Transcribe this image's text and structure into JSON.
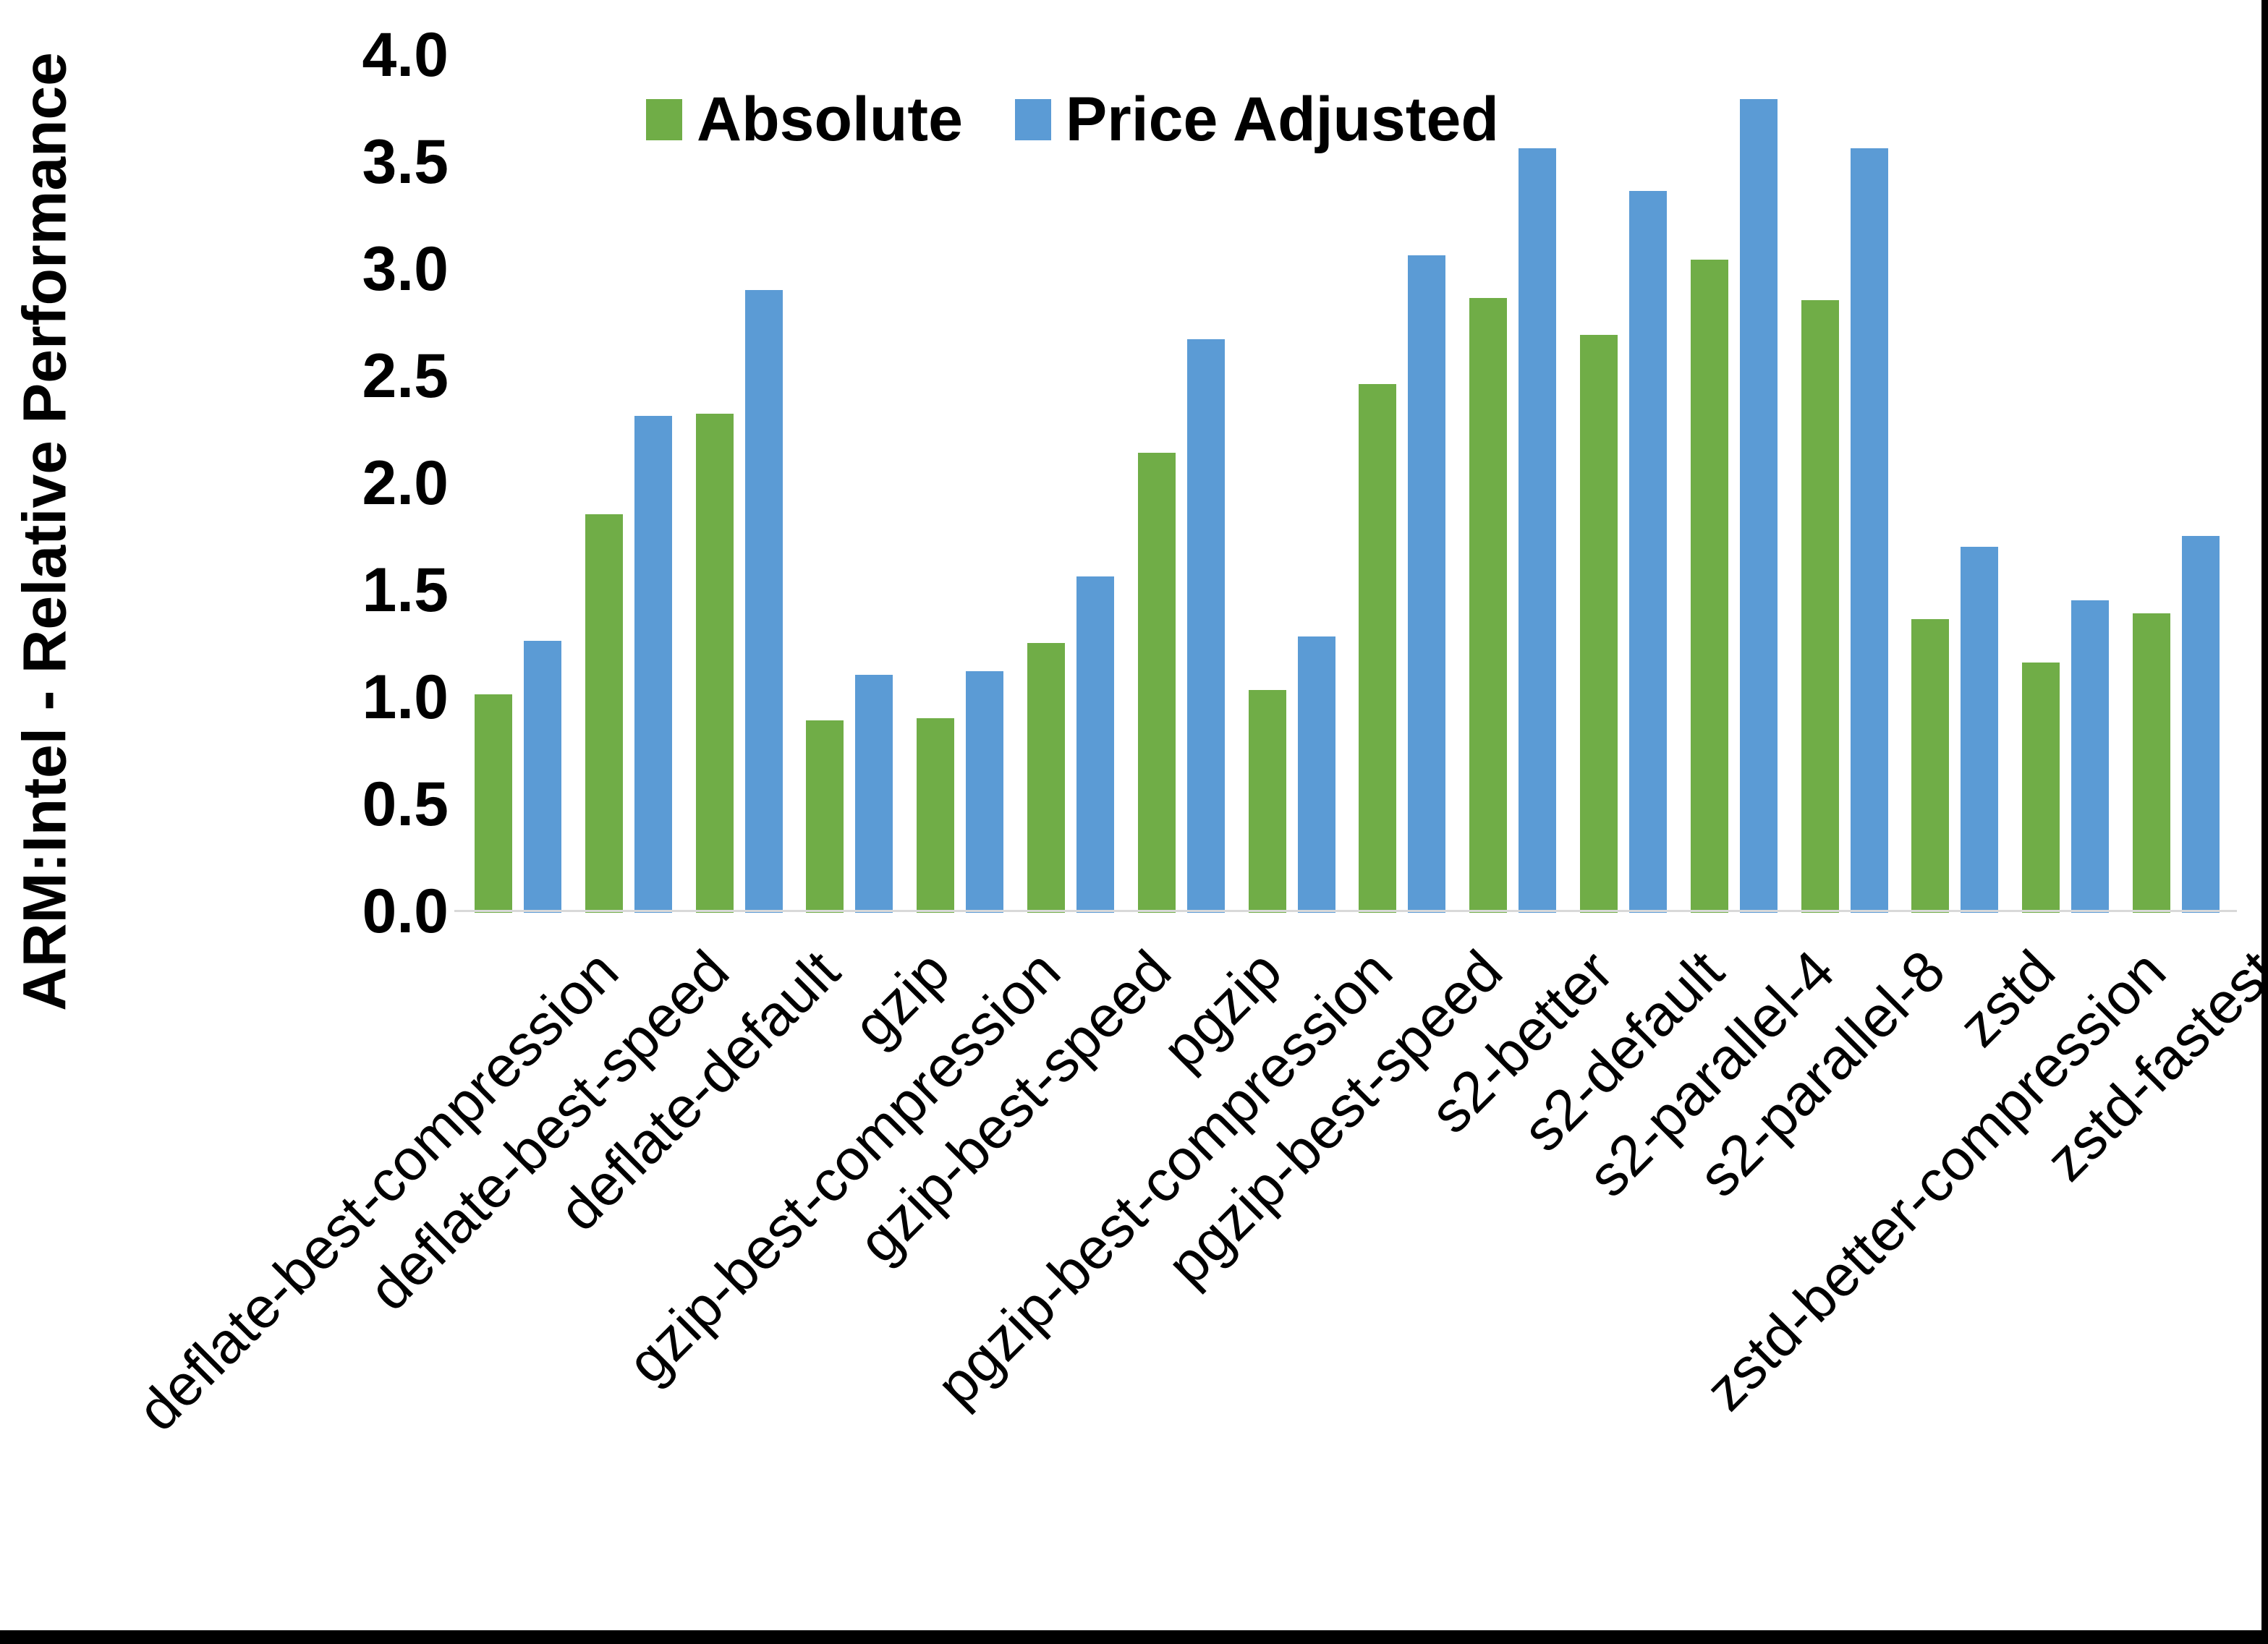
{
  "chart_data": {
    "type": "bar",
    "title": "",
    "xlabel": "",
    "ylabel": "ARM:Intel - Relative Performance",
    "ylim": [
      0.0,
      4.0
    ],
    "y_tick_step": 0.5,
    "y_ticks": [
      "0.0",
      "0.5",
      "1.0",
      "1.5",
      "2.0",
      "2.5",
      "3.0",
      "3.5",
      "4.0"
    ],
    "grid": false,
    "legend_position": "top",
    "categories": [
      "deflate-best-compression",
      "deflate-best-speed",
      "deflate-default",
      "gzip",
      "gzip-best-compression",
      "gzip-best-speed",
      "pgzip",
      "pgzip-best-compression",
      "pgzip-best-speed",
      "s2-better",
      "s2-default",
      "s2-parallel-4",
      "s2-parallel-8",
      "zstd",
      "zstd-better-compression",
      "zstd-fastest"
    ],
    "series": [
      {
        "name": "Absolute",
        "color": "#70AD47",
        "values": [
          1.02,
          1.86,
          2.33,
          0.9,
          0.91,
          1.26,
          2.15,
          1.04,
          2.47,
          2.87,
          2.7,
          3.05,
          2.86,
          1.37,
          1.17,
          1.4
        ]
      },
      {
        "name": "Price Adjusted",
        "color": "#5B9BD5",
        "values": [
          1.27,
          2.32,
          2.91,
          1.11,
          1.13,
          1.57,
          2.68,
          1.29,
          3.07,
          3.57,
          3.37,
          3.8,
          3.57,
          1.71,
          1.46,
          1.76
        ]
      }
    ]
  },
  "colors": {
    "background": "#FFFFFF",
    "axis_line": "#D9D9D9",
    "text": "#000000",
    "frame": "#000000"
  }
}
